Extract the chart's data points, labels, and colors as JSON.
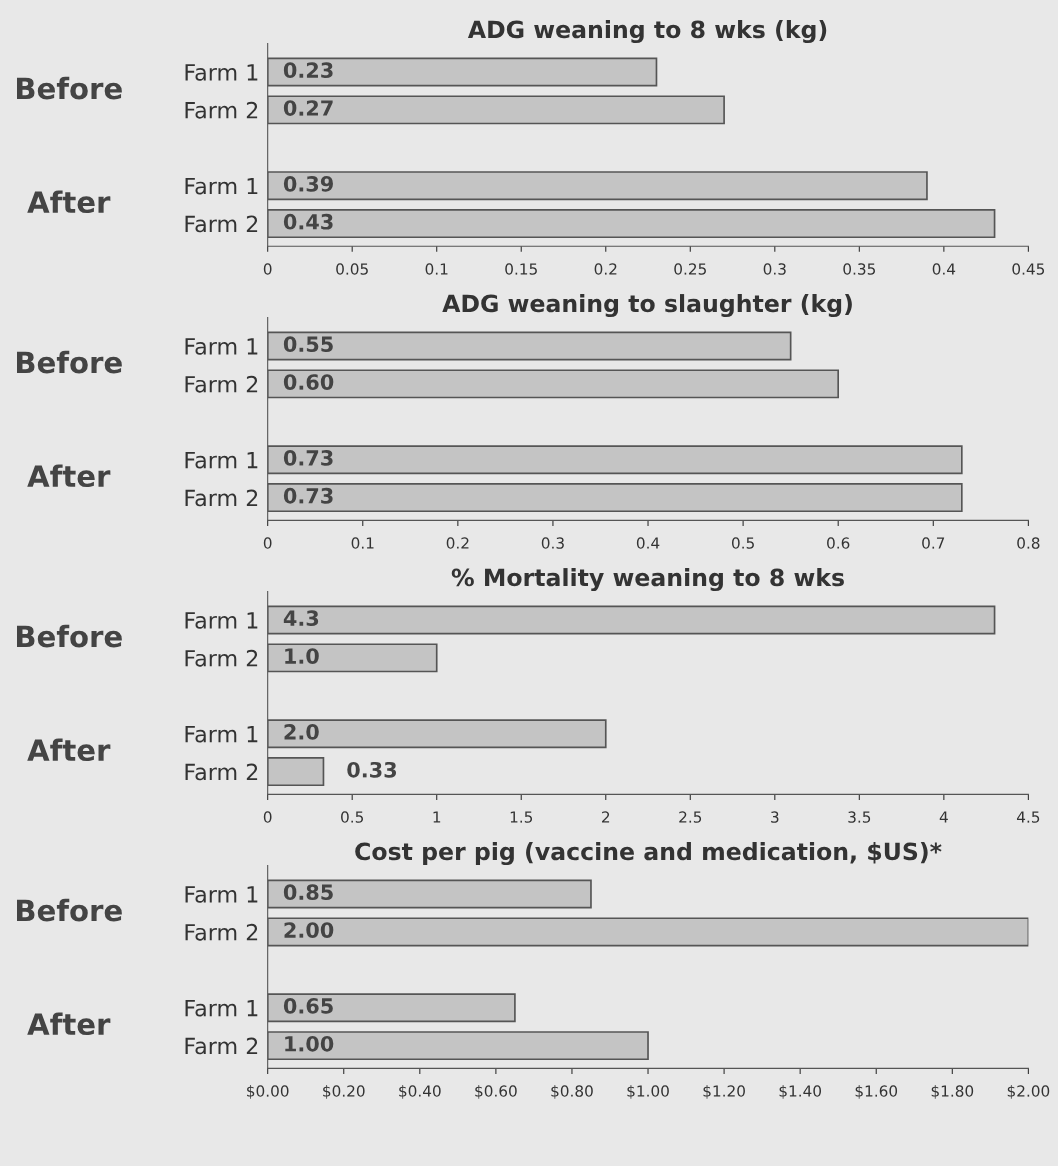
{
  "chart_data": [
    {
      "type": "bar",
      "orientation": "horizontal",
      "title": "ADG weaning to 8 wks (kg)",
      "categories": [
        "Farm 1",
        "Farm 2",
        null,
        "Farm 1",
        "Farm 2"
      ],
      "values": [
        0.23,
        0.27,
        null,
        0.39,
        0.43
      ],
      "value_labels": [
        "0.23",
        "0.27",
        null,
        "0.39",
        "0.43"
      ],
      "color": "#c4c4c4",
      "xlim": [
        0,
        0.45
      ],
      "xticks": [
        0,
        0.05,
        0.1,
        0.15,
        0.2,
        0.25,
        0.3,
        0.35,
        0.4,
        0.45
      ],
      "annotations": [
        "Before",
        "After"
      ]
    },
    {
      "type": "bar",
      "orientation": "horizontal",
      "title": "ADG weaning to slaughter (kg)",
      "categories": [
        "Farm 1",
        "Farm 2",
        null,
        "Farm 1",
        "Farm 2"
      ],
      "values": [
        0.55,
        0.6,
        null,
        0.73,
        0.73
      ],
      "value_labels": [
        "0.55",
        "0.60",
        null,
        "0.73",
        "0.73"
      ],
      "color": "#c4c4c4",
      "xlim": [
        0,
        0.8
      ],
      "xticks": [
        0,
        0.1,
        0.2,
        0.3,
        0.4,
        0.5,
        0.6,
        0.7,
        0.8
      ],
      "annotations": [
        "Before",
        "After"
      ]
    },
    {
      "type": "bar",
      "orientation": "horizontal",
      "title": "% Mortality weaning to 8 wks",
      "categories": [
        "Farm 1",
        "Farm 2",
        null,
        "Farm 1",
        "Farm 2"
      ],
      "values": [
        4.3,
        1.0,
        null,
        2.0,
        0.33
      ],
      "value_labels": [
        "4.3",
        "1.0",
        null,
        "2.0",
        "0.33"
      ],
      "color": "#c4c4c4",
      "xlim": [
        0,
        4.5
      ],
      "xticks": [
        0,
        0.5,
        1,
        1.5,
        2,
        2.5,
        3,
        3.5,
        4,
        4.5
      ],
      "annotations": [
        "Before",
        "After"
      ]
    },
    {
      "type": "bar",
      "orientation": "horizontal",
      "title": "Cost per pig (vaccine and medication, $US)*",
      "categories": [
        "Farm 1",
        "Farm 2",
        null,
        "Farm 1",
        "Farm 2"
      ],
      "values": [
        0.85,
        2.0,
        null,
        0.65,
        1.0
      ],
      "value_labels": [
        "0.85",
        "2.00",
        null,
        "0.65",
        "1.00"
      ],
      "color": "#c4c4c4",
      "xlim": [
        0,
        2.0
      ],
      "xticks": [
        {
          "value": 0,
          "label": "$0.00"
        },
        {
          "value": 0.2,
          "label": "$0.20"
        },
        {
          "value": 0.4,
          "label": "$0.40"
        },
        {
          "value": 0.6,
          "label": "$0.60"
        },
        {
          "value": 0.8,
          "label": "$0.80"
        },
        {
          "value": 1.0,
          "label": "$1.00"
        },
        {
          "value": 1.2,
          "label": "$1.20"
        },
        {
          "value": 1.4,
          "label": "$1.40"
        },
        {
          "value": 1.6,
          "label": "$1.60"
        },
        {
          "value": 1.8,
          "label": "$1.80"
        },
        {
          "value": 2.0,
          "label": "$2.00"
        }
      ],
      "annotations": [
        "Before",
        "After"
      ]
    }
  ]
}
